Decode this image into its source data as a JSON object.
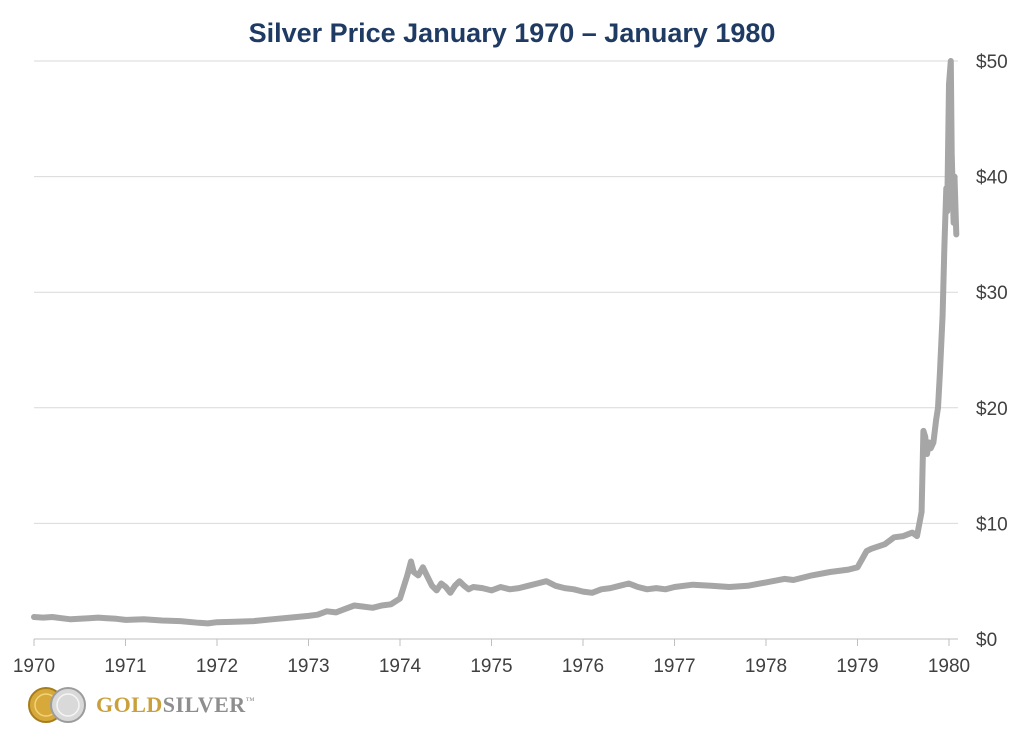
{
  "chart_data": {
    "type": "line",
    "title": "Silver Price January 1970 – January 1980",
    "xlabel": "",
    "ylabel": "",
    "x_ticks": [
      "1970",
      "1971",
      "1972",
      "1973",
      "1974",
      "1975",
      "1976",
      "1977",
      "1978",
      "1979",
      "1980"
    ],
    "y_ticks": [
      "$0",
      "$10",
      "$20",
      "$30",
      "$40",
      "$50"
    ],
    "ylim": [
      0,
      50
    ],
    "xlim": [
      1970.0,
      1980.1
    ],
    "y_axis_side": "right",
    "grid": true,
    "line_color": "#a6a6a6",
    "title_color": "#1f3b63",
    "series": [
      {
        "x": [
          1970.0,
          1970.1,
          1970.2,
          1970.3,
          1970.4,
          1970.5,
          1970.6,
          1970.7,
          1970.8,
          1970.9,
          1971.0,
          1971.2,
          1971.4,
          1971.6,
          1971.8,
          1971.9,
          1972.0,
          1972.2,
          1972.4,
          1972.6,
          1972.8,
          1973.0,
          1973.1,
          1973.2,
          1973.3,
          1973.4,
          1973.5,
          1973.6,
          1973.7,
          1973.8,
          1973.9,
          1974.0,
          1974.08,
          1974.12,
          1974.15,
          1974.2,
          1974.25,
          1974.3,
          1974.35,
          1974.4,
          1974.45,
          1974.5,
          1974.55,
          1974.6,
          1974.65,
          1974.7,
          1974.75,
          1974.8,
          1974.9,
          1975.0,
          1975.1,
          1975.2,
          1975.3,
          1975.4,
          1975.5,
          1975.6,
          1975.7,
          1975.8,
          1975.9,
          1976.0,
          1976.1,
          1976.2,
          1976.3,
          1976.4,
          1976.5,
          1976.6,
          1976.7,
          1976.8,
          1976.9,
          1977.0,
          1977.2,
          1977.4,
          1977.6,
          1977.8,
          1978.0,
          1978.2,
          1978.3,
          1978.5,
          1978.7,
          1978.9,
          1979.0,
          1979.1,
          1979.15,
          1979.3,
          1979.4,
          1979.5,
          1979.6,
          1979.65,
          1979.7,
          1979.72,
          1979.74,
          1979.76,
          1979.78,
          1979.8,
          1979.83,
          1979.86,
          1979.88,
          1979.9,
          1979.93,
          1979.95,
          1979.97,
          1979.98,
          1980.0,
          1980.02,
          1980.03,
          1980.05,
          1980.06,
          1980.08
        ],
        "y": [
          1.9,
          1.85,
          1.9,
          1.8,
          1.7,
          1.75,
          1.8,
          1.85,
          1.8,
          1.75,
          1.65,
          1.7,
          1.6,
          1.55,
          1.4,
          1.35,
          1.45,
          1.5,
          1.55,
          1.7,
          1.85,
          2.0,
          2.1,
          2.4,
          2.3,
          2.6,
          2.9,
          2.8,
          2.7,
          2.9,
          3.0,
          3.5,
          5.5,
          6.7,
          5.8,
          5.5,
          6.2,
          5.4,
          4.6,
          4.2,
          4.8,
          4.5,
          4.0,
          4.6,
          5.0,
          4.6,
          4.3,
          4.5,
          4.4,
          4.2,
          4.5,
          4.3,
          4.4,
          4.6,
          4.8,
          5.0,
          4.6,
          4.4,
          4.3,
          4.1,
          4.0,
          4.3,
          4.4,
          4.6,
          4.8,
          4.5,
          4.3,
          4.4,
          4.3,
          4.5,
          4.7,
          4.6,
          4.5,
          4.6,
          4.9,
          5.2,
          5.1,
          5.5,
          5.8,
          6.0,
          6.2,
          7.6,
          7.8,
          8.2,
          8.8,
          8.9,
          9.2,
          8.9,
          11.0,
          18.0,
          17.5,
          16.0,
          17.0,
          16.5,
          17.0,
          19.0,
          20.0,
          23.0,
          28.0,
          34.0,
          39.0,
          37.0,
          48.0,
          50.0,
          42.0,
          36.0,
          40.0,
          35.0
        ]
      }
    ]
  },
  "logo": {
    "word_gold": "GOLD",
    "word_silver": "SILVER",
    "mark": "™",
    "coin_icons": [
      "gold-coin-icon",
      "silver-coin-icon"
    ]
  }
}
